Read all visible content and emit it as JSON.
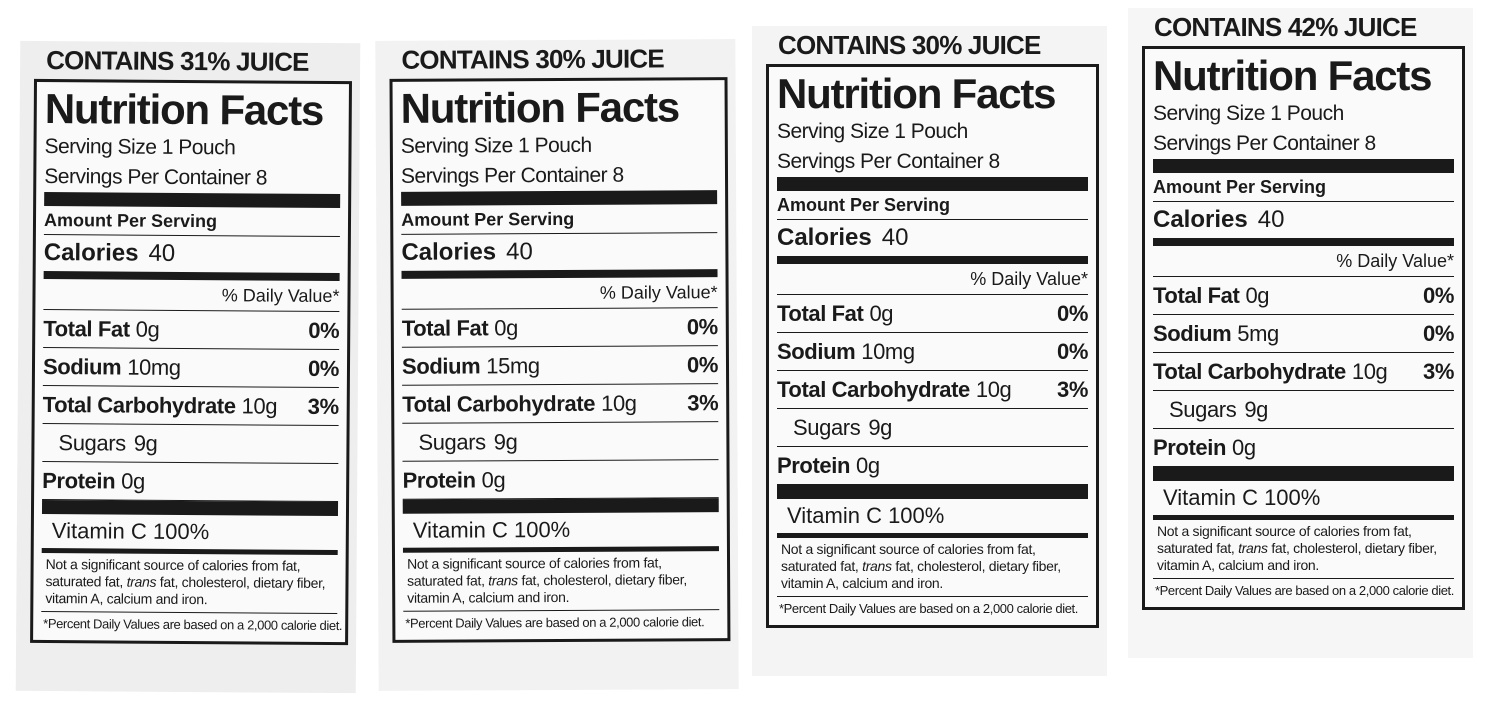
{
  "labels": [
    {
      "juice": "CONTAINS 31% JUICE",
      "title": "Nutrition Facts",
      "serving_size": "Serving Size 1 Pouch",
      "servings_per_container": "Servings Per Container 8",
      "amount_per_serving": "Amount Per Serving",
      "calories": {
        "name": "Calories",
        "value": "40"
      },
      "daily_value_header": "% Daily Value*",
      "rows": [
        {
          "name": "Total Fat",
          "amount": "0g",
          "dv": "0%"
        },
        {
          "name": "Sodium",
          "amount": "10mg",
          "dv": "0%"
        },
        {
          "name": "Total Carbohydrate",
          "amount": "10g",
          "dv": "3%"
        }
      ],
      "sugars": {
        "name": "Sugars",
        "amount": "9g"
      },
      "protein": {
        "name": "Protein",
        "amount": "0g"
      },
      "vitamin": "Vitamin C 100%",
      "note": [
        "Not a significant source of calories from fat, saturated fat, ",
        "trans",
        " fat, cholesterol, dietary fiber, vitamin A, calcium and iron."
      ],
      "footnote": "*Percent Daily Values are based on a 2,000 calorie diet."
    },
    {
      "juice": "CONTAINS 30% JUICE",
      "title": "Nutrition Facts",
      "serving_size": "Serving Size 1 Pouch",
      "servings_per_container": "Servings Per Container 8",
      "amount_per_serving": "Amount Per Serving",
      "calories": {
        "name": "Calories",
        "value": "40"
      },
      "daily_value_header": "% Daily Value*",
      "rows": [
        {
          "name": "Total Fat",
          "amount": "0g",
          "dv": "0%"
        },
        {
          "name": "Sodium",
          "amount": "15mg",
          "dv": "0%"
        },
        {
          "name": "Total Carbohydrate",
          "amount": "10g",
          "dv": "3%"
        }
      ],
      "sugars": {
        "name": "Sugars",
        "amount": "9g"
      },
      "protein": {
        "name": "Protein",
        "amount": "0g"
      },
      "vitamin": "Vitamin C 100%",
      "note": [
        "Not a significant source of calories from fat, saturated fat, ",
        "trans",
        " fat, cholesterol, dietary fiber, vitamin A, calcium and iron."
      ],
      "footnote": "*Percent Daily Values are based on a 2,000 calorie diet."
    },
    {
      "juice": "CONTAINS 30% JUICE",
      "title": "Nutrition Facts",
      "serving_size": "Serving Size 1 Pouch",
      "servings_per_container": "Servings Per Container 8",
      "amount_per_serving": "Amount Per Serving",
      "calories": {
        "name": "Calories",
        "value": "40"
      },
      "daily_value_header": "% Daily Value*",
      "rows": [
        {
          "name": "Total Fat",
          "amount": "0g",
          "dv": "0%"
        },
        {
          "name": "Sodium",
          "amount": "10mg",
          "dv": "0%"
        },
        {
          "name": "Total Carbohydrate",
          "amount": "10g",
          "dv": "3%"
        }
      ],
      "sugars": {
        "name": "Sugars",
        "amount": "9g"
      },
      "protein": {
        "name": "Protein",
        "amount": "0g"
      },
      "vitamin": "Vitamin C 100%",
      "note": [
        "Not a significant source of calories from fat, saturated fat, ",
        "trans",
        " fat, cholesterol, dietary fiber, vitamin A, calcium and iron."
      ],
      "footnote": "*Percent Daily Values are based on a 2,000 calorie diet."
    },
    {
      "juice": "CONTAINS 42% JUICE",
      "title": "Nutrition Facts",
      "serving_size": "Serving Size 1 Pouch",
      "servings_per_container": "Servings Per Container 8",
      "amount_per_serving": "Amount Per Serving",
      "calories": {
        "name": "Calories",
        "value": "40"
      },
      "daily_value_header": "% Daily Value*",
      "rows": [
        {
          "name": "Total Fat",
          "amount": "0g",
          "dv": "0%"
        },
        {
          "name": "Sodium",
          "amount": "5mg",
          "dv": "0%"
        },
        {
          "name": "Total Carbohydrate",
          "amount": "10g",
          "dv": "3%"
        }
      ],
      "sugars": {
        "name": "Sugars",
        "amount": "9g"
      },
      "protein": {
        "name": "Protein",
        "amount": "0g"
      },
      "vitamin": "Vitamin C 100%",
      "note": [
        "Not a significant source of calories from fat, saturated fat, ",
        "trans",
        " fat, cholesterol, dietary fiber, vitamin A, calcium and iron."
      ],
      "footnote": "*Percent Daily Values are based on a 2,000 calorie diet."
    }
  ]
}
